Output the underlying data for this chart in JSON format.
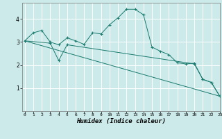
{
  "xlabel": "Humidex (Indice chaleur)",
  "bg_color": "#cceaea",
  "line_color": "#1a7a6e",
  "grid_color": "#ffffff",
  "grid_minor_color": "#dff0f0",
  "line1_x": [
    0,
    1,
    2,
    3,
    4,
    5,
    6,
    7,
    8,
    9,
    10,
    11,
    12,
    13,
    14,
    15,
    16,
    17,
    18,
    19,
    20,
    21,
    22,
    23
  ],
  "line1_y": [
    3.05,
    3.4,
    3.5,
    3.0,
    2.88,
    3.18,
    3.05,
    2.9,
    3.4,
    3.35,
    3.75,
    4.05,
    4.42,
    4.42,
    4.18,
    2.78,
    2.6,
    2.45,
    2.1,
    2.05,
    2.08,
    1.38,
    1.25,
    0.65
  ],
  "line2_x": [
    0,
    3,
    4,
    5,
    20,
    21,
    22,
    23
  ],
  "line2_y": [
    3.05,
    2.95,
    2.2,
    2.88,
    2.05,
    1.38,
    1.25,
    0.65
  ],
  "line3_x": [
    0,
    23
  ],
  "line3_y": [
    3.05,
    0.65
  ],
  "ylim": [
    0,
    4.7
  ],
  "xlim": [
    -0.3,
    23
  ],
  "yticks": [
    1,
    2,
    3,
    4
  ],
  "xticks": [
    0,
    1,
    2,
    3,
    4,
    5,
    6,
    7,
    8,
    9,
    10,
    11,
    12,
    13,
    14,
    15,
    16,
    17,
    18,
    19,
    20,
    21,
    22,
    23
  ]
}
